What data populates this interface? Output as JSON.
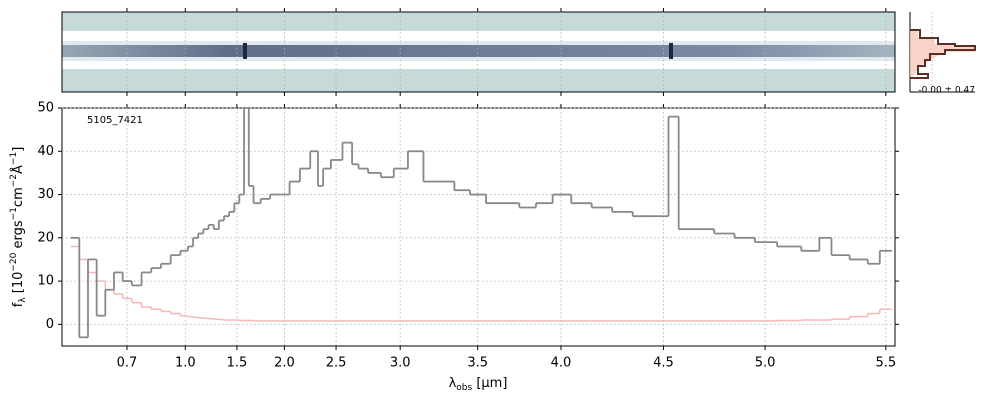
{
  "chart_data": {
    "type": "line",
    "step": true,
    "grid": true,
    "annotation": "5105_7421",
    "xlabel": [
      "λ",
      "obs",
      " [µm]"
    ],
    "ylabel": [
      "f",
      "λ",
      " [10",
      "−20",
      " ergs",
      "−1",
      "cm",
      "−2",
      "Å",
      "−1",
      "]"
    ],
    "histogram_label": "-0.00 ± 0.47",
    "xlim": [
      0.55,
      5.52
    ],
    "ylim": [
      -5,
      50
    ],
    "xticks": [
      0.7,
      {
        "value": 1,
        "label": "1.0"
      },
      1.5,
      {
        "value": 2,
        "label": "2.0"
      },
      2.5,
      {
        "value": 3,
        "label": "3.0"
      },
      3.5,
      {
        "value": 4,
        "label": "4.0"
      },
      4.5,
      {
        "value": 5,
        "label": "5.0"
      },
      5.5
    ],
    "yticks": [
      0,
      10,
      20,
      30,
      40,
      50
    ],
    "x": [
      0.58,
      0.6,
      0.62,
      0.64,
      0.66,
      0.68,
      0.7,
      0.75,
      0.8,
      0.85,
      0.9,
      0.95,
      1.0,
      1.05,
      1.1,
      1.15,
      1.2,
      1.25,
      1.3,
      1.35,
      1.4,
      1.45,
      1.5,
      1.55,
      1.6,
      1.65,
      1.7,
      1.8,
      1.9,
      2.0,
      2.1,
      2.2,
      2.3,
      2.35,
      2.4,
      2.5,
      2.6,
      2.65,
      2.7,
      2.8,
      2.9,
      3.0,
      3.1,
      3.2,
      3.3,
      3.4,
      3.5,
      3.6,
      3.7,
      3.8,
      3.9,
      4.0,
      4.1,
      4.2,
      4.3,
      4.4,
      4.5,
      4.55,
      4.6,
      4.7,
      4.8,
      4.9,
      5.0,
      5.1,
      5.2,
      5.25,
      5.3,
      5.4,
      5.45,
      5.5
    ],
    "series": [
      {
        "name": "flux",
        "color": "#888888",
        "values": [
          20,
          -3,
          15,
          2,
          8,
          12,
          10,
          9,
          12,
          13,
          14,
          16,
          17,
          18,
          20,
          21,
          22,
          23,
          22,
          24,
          25,
          26,
          28,
          30,
          50,
          32,
          28,
          29,
          30,
          30,
          33,
          36,
          40,
          32,
          36,
          38,
          42,
          37,
          36,
          35,
          34,
          36,
          40,
          33,
          33,
          31,
          30,
          28,
          28,
          27,
          28,
          30,
          28,
          27,
          26,
          25,
          25,
          48,
          22,
          22,
          21,
          20,
          19,
          18,
          17,
          20,
          16,
          15,
          14,
          17
        ]
      },
      {
        "name": "error",
        "color": "#f4b8b8",
        "values": [
          18,
          15,
          12,
          10,
          8,
          7,
          6,
          5,
          4,
          3.5,
          3,
          2.5,
          2,
          1.8,
          1.6,
          1.5,
          1.4,
          1.3,
          1.2,
          1.1,
          1,
          1,
          1,
          0.9,
          0.9,
          0.9,
          0.8,
          0.8,
          0.8,
          0.8,
          0.8,
          0.8,
          0.8,
          0.8,
          0.8,
          0.8,
          0.8,
          0.8,
          0.8,
          0.8,
          0.8,
          0.8,
          0.8,
          0.8,
          0.8,
          0.8,
          0.8,
          0.8,
          0.8,
          0.8,
          0.8,
          0.8,
          0.8,
          0.8,
          0.8,
          0.8,
          0.8,
          0.8,
          0.8,
          0.8,
          0.8,
          0.8,
          0.8,
          0.9,
          1,
          1,
          1.2,
          1.8,
          2.5,
          3.5
        ]
      }
    ]
  }
}
